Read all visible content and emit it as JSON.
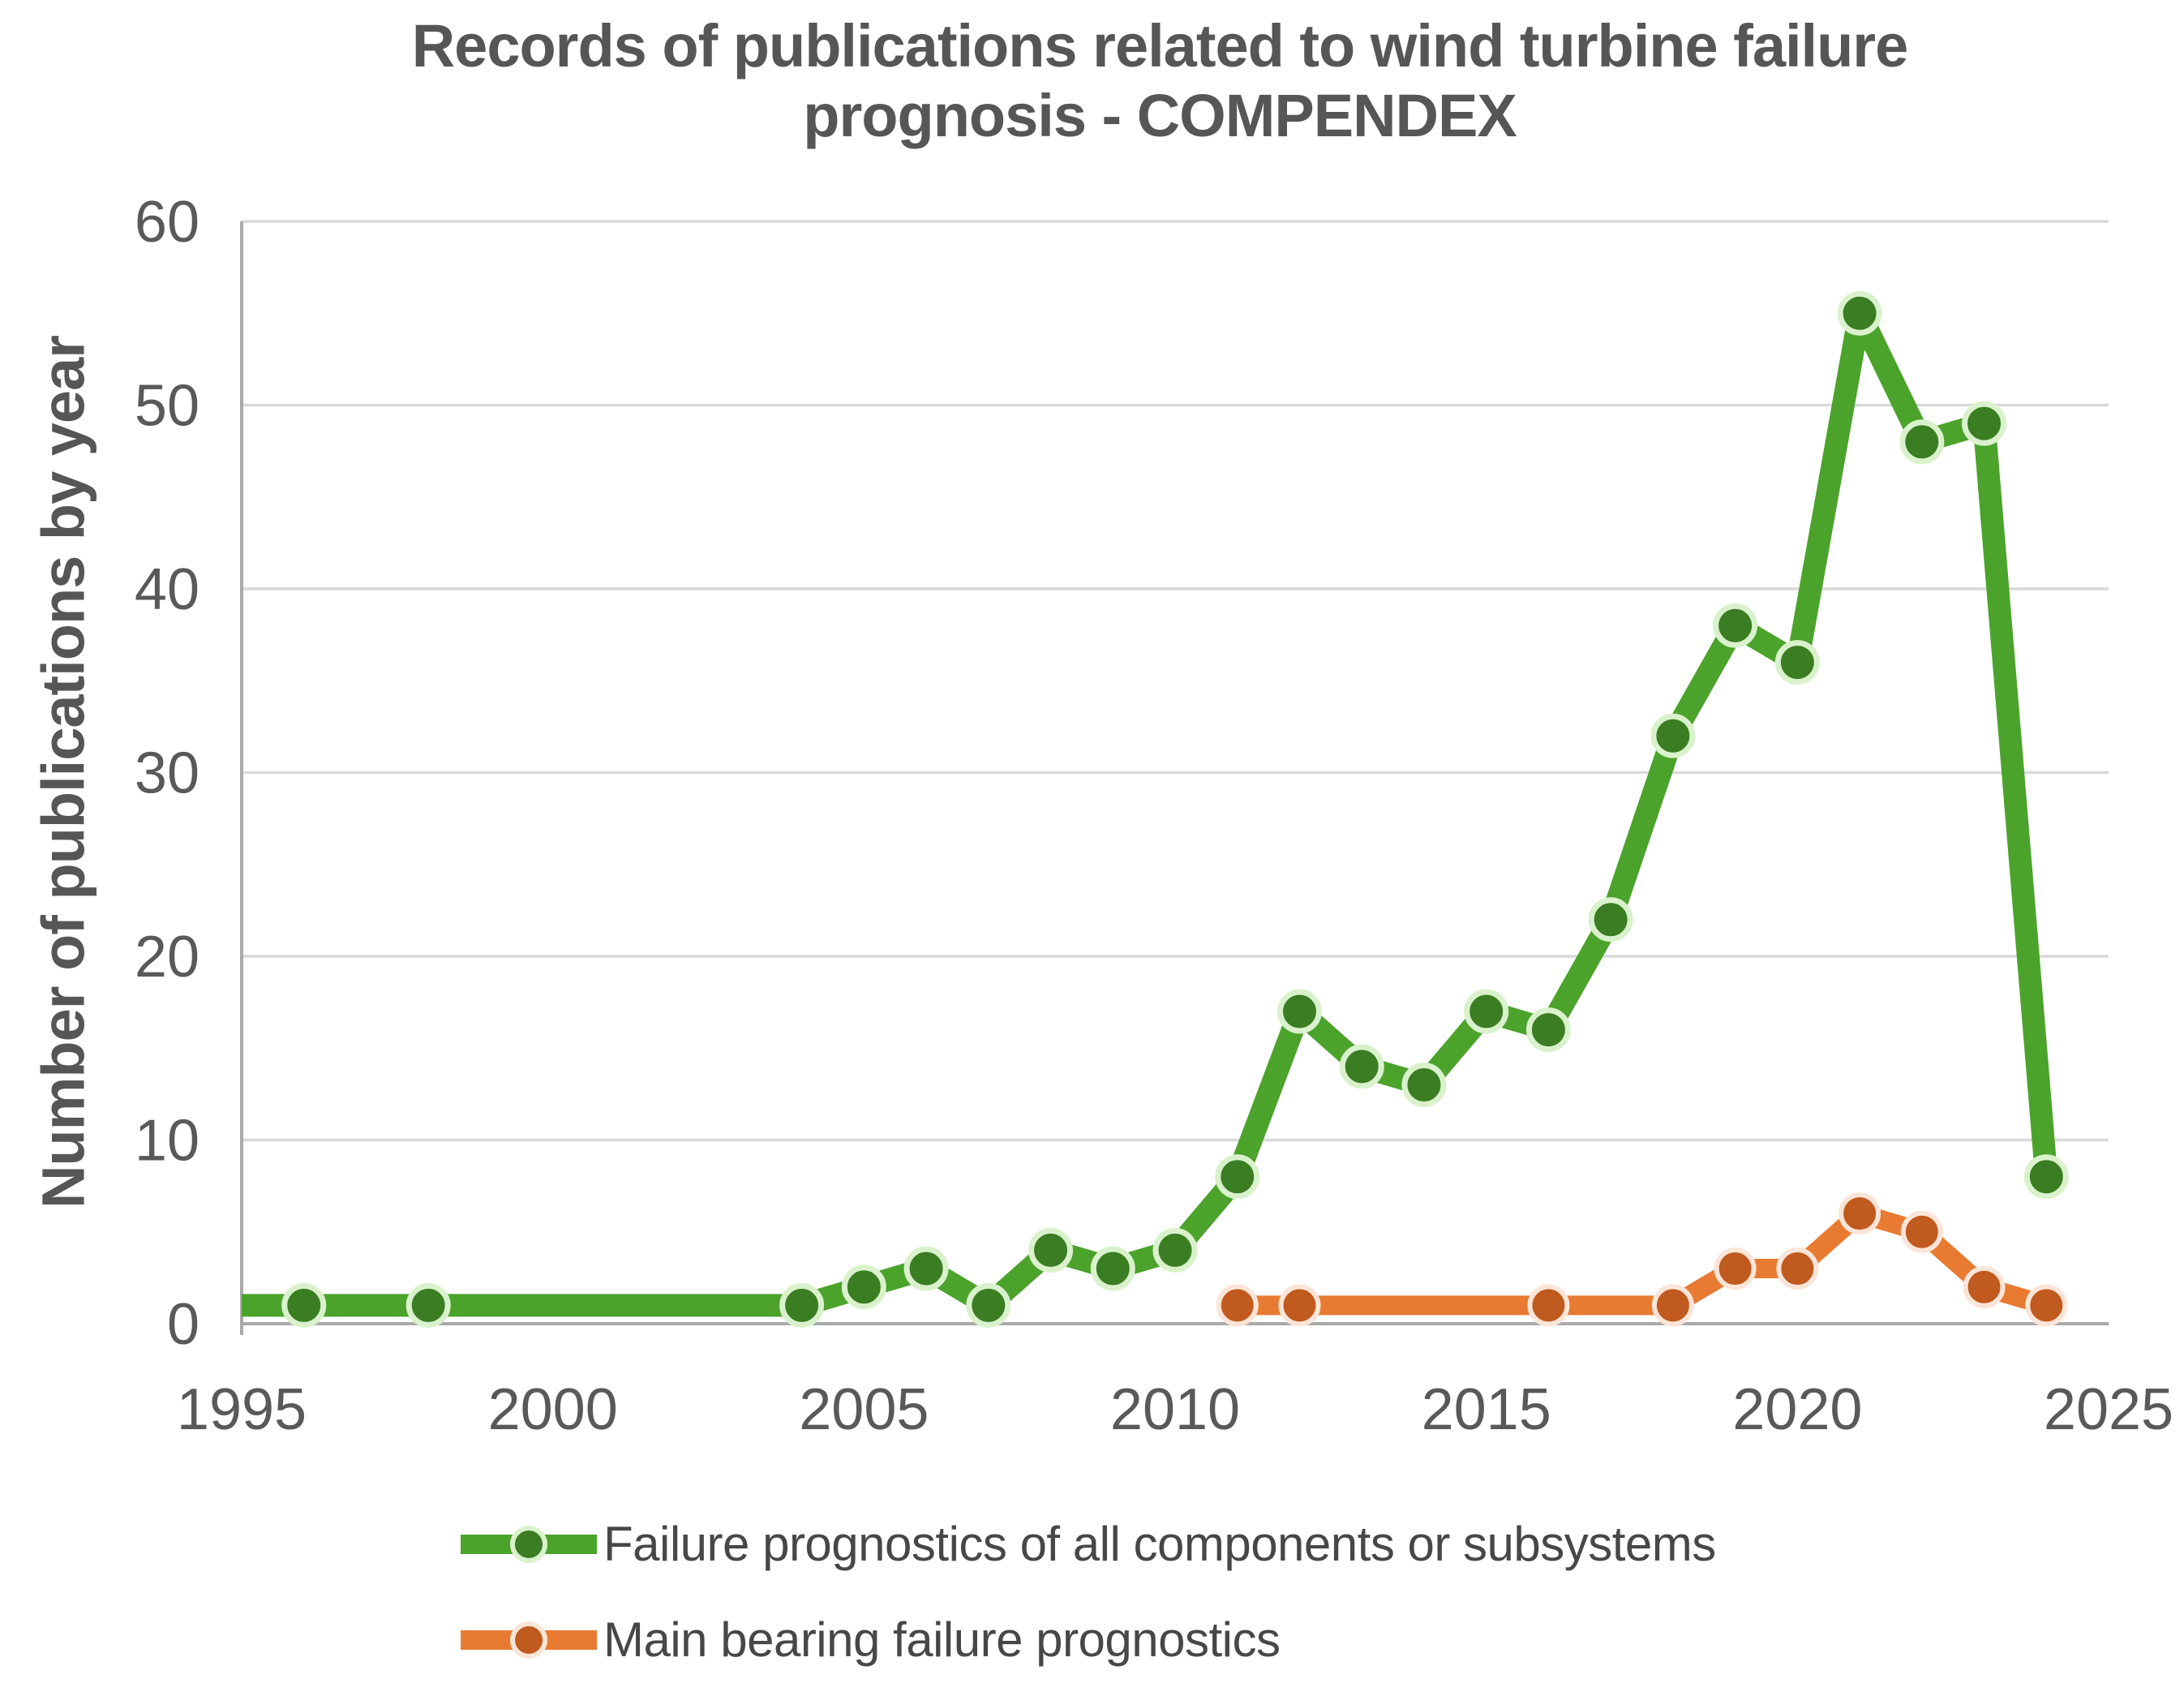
{
  "title": {
    "line1": "Records of publications related to wind turbine failure",
    "line2": "prognosis - COMPENDEX"
  },
  "chart_data": {
    "type": "line",
    "title": "Records of publications related to wind turbine failure prognosis - COMPENDEX",
    "xlabel": "",
    "ylabel": "Number of publications by year",
    "xlim": [
      1995,
      2025
    ],
    "ylim": [
      0,
      60
    ],
    "x_ticks": [
      "1995",
      "2000",
      "2005",
      "2010",
      "2015",
      "2020",
      "2025"
    ],
    "y_ticks": [
      "0",
      "10",
      "20",
      "30",
      "40",
      "50",
      "60"
    ],
    "grid": "horizontal",
    "legend_position": "bottom-left",
    "series": [
      {
        "name": "Failure prognostics of all components or subsystems",
        "color": "#4BA32B",
        "marker_color": "#3A7D22",
        "marker_halo": "#D9F2CC",
        "line_width": 28,
        "marker_radius": 24,
        "halo_width": 7,
        "points": [
          [
            1995,
            1
          ],
          [
            1996,
            1
          ],
          [
            1998,
            1
          ],
          [
            2004,
            1
          ],
          [
            2005,
            2
          ],
          [
            2006,
            3
          ],
          [
            2007,
            1
          ],
          [
            2008,
            4
          ],
          [
            2009,
            3
          ],
          [
            2010,
            4
          ],
          [
            2011,
            8
          ],
          [
            2012,
            17
          ],
          [
            2013,
            14
          ],
          [
            2014,
            13
          ],
          [
            2015,
            17
          ],
          [
            2016,
            16
          ],
          [
            2017,
            22
          ],
          [
            2018,
            32
          ],
          [
            2019,
            38
          ],
          [
            2020,
            36
          ],
          [
            2021,
            55
          ],
          [
            2022,
            48
          ],
          [
            2023,
            49
          ],
          [
            2024,
            8
          ]
        ],
        "years_without_marker": [
          1995
        ]
      },
      {
        "name": "Main bearing failure prognostics",
        "color": "#E87A31",
        "marker_color": "#C05A1E",
        "marker_halo": "#FBE5D8",
        "line_width": 24,
        "marker_radius": 23,
        "halo_width": 6,
        "points": [
          [
            2011,
            1
          ],
          [
            2012,
            1
          ],
          [
            2016,
            1
          ],
          [
            2018,
            1
          ],
          [
            2019,
            3
          ],
          [
            2020,
            3
          ],
          [
            2021,
            6
          ],
          [
            2022,
            5
          ],
          [
            2023,
            2
          ],
          [
            2024,
            1
          ]
        ],
        "years_without_marker": []
      }
    ]
  },
  "colors": {
    "gridline": "#D9D9D9",
    "axis_line": "#AAAAAA",
    "tick_label": "#595959",
    "title_text": "#565656",
    "legend_text": "#474747",
    "background": "#FFFFFF"
  }
}
